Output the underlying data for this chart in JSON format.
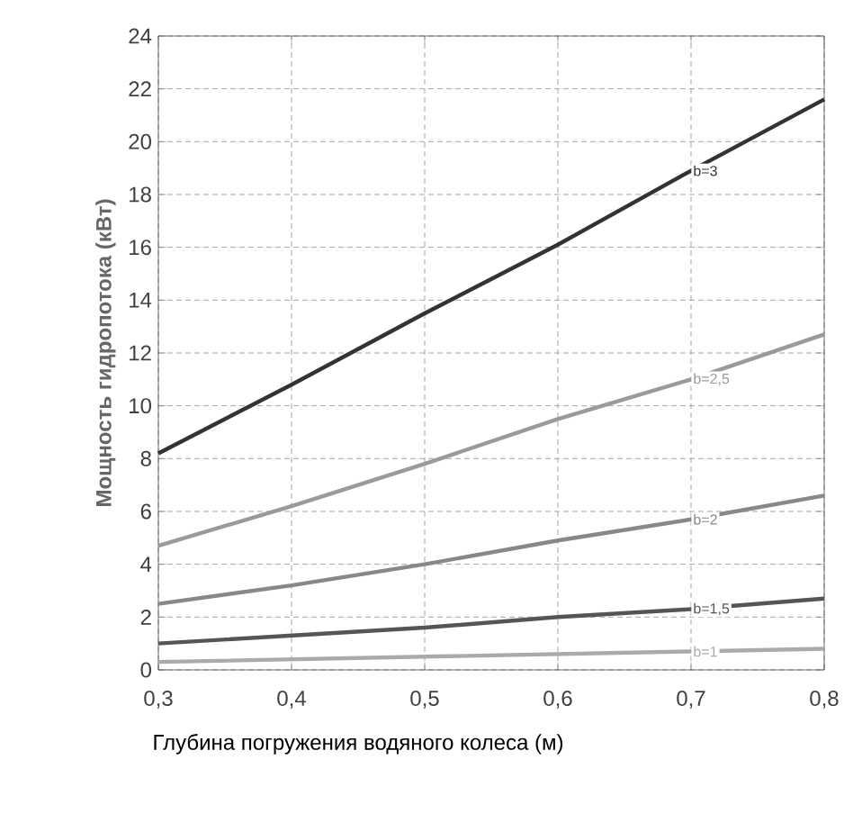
{
  "chart_data": {
    "type": "line",
    "xlabel": "Глубина погружения водяного колеса (м)",
    "ylabel": "Мощность гидропотока (кВт)",
    "x": [
      0.3,
      0.4,
      0.5,
      0.6,
      0.7,
      0.8
    ],
    "series": [
      {
        "name": "b=3",
        "color": "#333333",
        "values": [
          8.2,
          10.8,
          13.5,
          16.1,
          18.9,
          21.6
        ]
      },
      {
        "name": "b=2,5",
        "color": "#9a9a9a",
        "values": [
          4.7,
          6.2,
          7.8,
          9.5,
          11.0,
          12.7
        ]
      },
      {
        "name": "b=2",
        "color": "#888888",
        "values": [
          2.5,
          3.2,
          4.0,
          4.9,
          5.7,
          6.6
        ]
      },
      {
        "name": "b=1,5",
        "color": "#555555",
        "values": [
          1.0,
          1.3,
          1.6,
          2.0,
          2.3,
          2.7
        ]
      },
      {
        "name": "b=1",
        "color": "#aaaaaa",
        "values": [
          0.3,
          0.4,
          0.5,
          0.6,
          0.7,
          0.8
        ]
      }
    ],
    "xlim": [
      0.3,
      0.8
    ],
    "xticks": [
      {
        "value": 0.3,
        "label": "0,3"
      },
      {
        "value": 0.4,
        "label": "0,4"
      },
      {
        "value": 0.5,
        "label": "0,5"
      },
      {
        "value": 0.6,
        "label": "0,6"
      },
      {
        "value": 0.7,
        "label": "0,7"
      },
      {
        "value": 0.8,
        "label": "0,8"
      }
    ],
    "ylim": [
      0,
      24
    ],
    "yticks": [
      0,
      2,
      4,
      6,
      8,
      10,
      12,
      14,
      16,
      18,
      20,
      22,
      24
    ],
    "grid": true,
    "legend": false,
    "marker": "none",
    "line_style": "solid"
  }
}
